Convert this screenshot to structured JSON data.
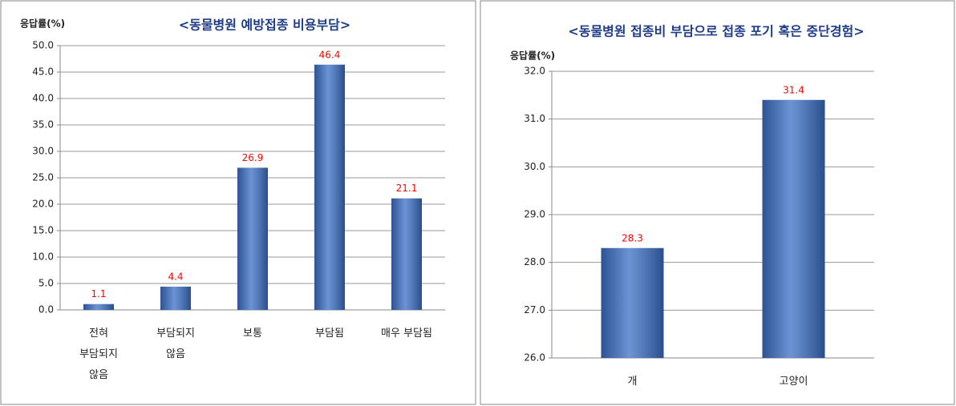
{
  "chart_data": [
    {
      "type": "bar",
      "title": "<동물병원 예방접종 비용부담>",
      "y_label": "응답률(%)",
      "categories": [
        "전혀\n부담되지\n않음",
        "부담되지\n않음",
        "보통",
        "부담됨",
        "매우 부담됨"
      ],
      "values": [
        1.1,
        4.4,
        26.9,
        46.4,
        21.1
      ],
      "color": "#3b6fc6",
      "label_color": "#ff0000",
      "ylim": [
        0,
        50
      ],
      "yticks": [
        {
          "value": 0,
          "label": "0.0"
        },
        {
          "value": 5,
          "label": "5.0"
        },
        {
          "value": 10,
          "label": "10.0"
        },
        {
          "value": 15,
          "label": "15.0"
        },
        {
          "value": 20,
          "label": "20.0"
        },
        {
          "value": 25,
          "label": "25.0"
        },
        {
          "value": 30,
          "label": "30.0"
        },
        {
          "value": 35,
          "label": "35.0"
        },
        {
          "value": 40,
          "label": "40.0"
        },
        {
          "value": 45,
          "label": "45.0"
        },
        {
          "value": 50,
          "label": "50.0"
        }
      ],
      "grid": true
    },
    {
      "type": "bar",
      "title": "<동물병원 접종비 부담으로 접종 포기 혹은 중단경험>",
      "y_label": "응답률(%)",
      "categories": [
        "개",
        "고양이"
      ],
      "values": [
        28.3,
        31.4
      ],
      "color": "#3b6fc6",
      "label_color": "#ff0000",
      "ylim": [
        26,
        32
      ],
      "yticks": [
        {
          "value": 26,
          "label": "26.0"
        },
        {
          "value": 27,
          "label": "27.0"
        },
        {
          "value": 28,
          "label": "28.0"
        },
        {
          "value": 29,
          "label": "29.0"
        },
        {
          "value": 30,
          "label": "30.0"
        },
        {
          "value": 31,
          "label": "31.0"
        },
        {
          "value": 32,
          "label": "32.0"
        }
      ],
      "grid": true
    }
  ]
}
